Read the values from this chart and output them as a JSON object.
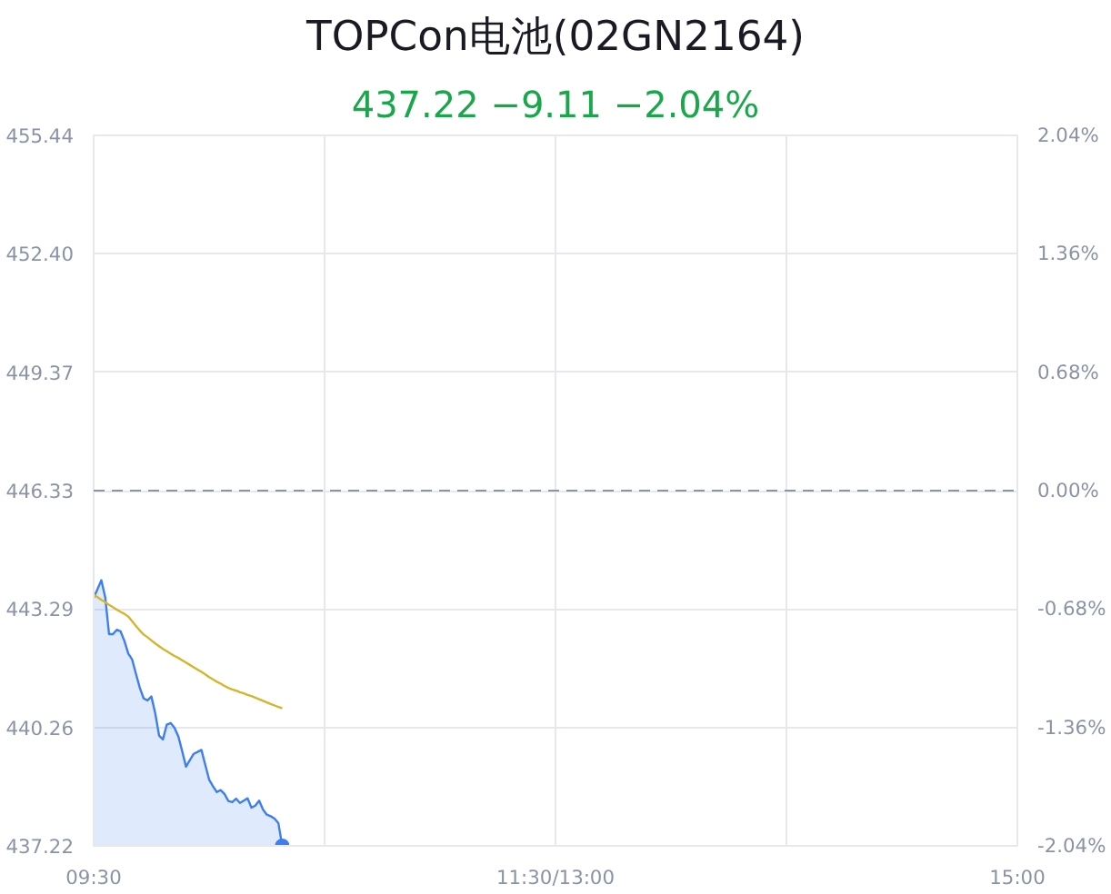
{
  "chart_data": {
    "type": "line",
    "title": "TOPCon电池(02GN2164)",
    "subtitle": "437.22 −9.11 −2.04%",
    "categories": [
      "09:30",
      null,
      null,
      null,
      null,
      null,
      null,
      null,
      null,
      null,
      null,
      null,
      null,
      null,
      null,
      null,
      null,
      null,
      null,
      null,
      null,
      null,
      null,
      null,
      null,
      null,
      null,
      null,
      null,
      null,
      null,
      null,
      null,
      null,
      null,
      null,
      null,
      null,
      null,
      null,
      null,
      null,
      null,
      null,
      null,
      null,
      null,
      null,
      null,
      null,
      null,
      null,
      null,
      null,
      null,
      null,
      null,
      null,
      null,
      null,
      null,
      null,
      null,
      null,
      null,
      null,
      null,
      null,
      null,
      null,
      null,
      null,
      null,
      null,
      null,
      null,
      null,
      null,
      null,
      null,
      null,
      null,
      null,
      null,
      null,
      null,
      null,
      null,
      null,
      null,
      null,
      null,
      null,
      null,
      null,
      null,
      null,
      null,
      null,
      null,
      null,
      null,
      null,
      null,
      null,
      null,
      null,
      null,
      null,
      null,
      null,
      null,
      null,
      null,
      null,
      null,
      null,
      null,
      null,
      null,
      "11:30/13:00",
      null,
      null,
      null,
      null,
      null,
      null,
      null,
      null,
      null,
      null,
      null,
      null,
      null,
      null,
      null,
      null,
      null,
      null,
      null,
      null,
      null,
      null,
      null,
      null,
      null,
      null,
      null,
      null,
      null,
      null,
      null,
      null,
      null,
      null,
      null,
      null,
      null,
      null,
      null,
      null,
      null,
      null,
      null,
      null,
      null,
      null,
      null,
      null,
      null,
      null,
      null,
      null,
      null,
      null,
      null,
      null,
      null,
      null,
      null,
      null,
      null,
      null,
      null,
      null,
      null,
      null,
      null,
      null,
      null,
      null,
      null,
      null,
      null,
      null,
      null,
      null,
      null,
      null,
      null,
      null,
      null,
      null,
      null,
      null,
      null,
      null,
      null,
      null,
      null,
      null,
      null,
      null,
      null,
      null,
      null,
      null,
      null,
      null,
      null,
      null,
      null,
      null,
      null,
      null,
      null,
      null,
      null,
      null,
      null,
      null,
      null,
      null,
      null,
      null,
      null,
      null,
      null,
      null,
      null,
      "15:00"
    ],
    "ylim": [
      437.22,
      455.44
    ],
    "yticks": [
      437.22,
      440.26,
      443.29,
      446.33,
      449.37,
      {
        "value": 452.4,
        "label": "452.40"
      },
      455.44
    ],
    "y2lim": [
      -2.04,
      2.04
    ],
    "y2ticks": [
      {
        "value": -2.04,
        "label": "-2.04%"
      },
      {
        "value": -1.36,
        "label": "-1.36%"
      },
      {
        "value": -0.68,
        "label": "-0.68%"
      },
      {
        "value": 0,
        "label": "0.00%"
      },
      {
        "value": 0.68,
        "label": "0.68%"
      },
      {
        "value": 1.36,
        "label": "1.36%"
      },
      {
        "value": 2.04,
        "label": "2.04%"
      }
    ],
    "ref_lines": [
      {
        "axis": "y",
        "value": 446.33,
        "color": "#8a94a6",
        "line_style": "dashed"
      }
    ],
    "grid": true,
    "series": [
      {
        "type": "area",
        "color": "#3d7ff0",
        "values": [
          443.58,
          443.8,
          444.03,
          443.6,
          442.65,
          442.65,
          442.76,
          442.72,
          442.47,
          442.15,
          442.0,
          441.63,
          441.27,
          441.0,
          440.95,
          441.05,
          440.62,
          440.05,
          439.95,
          440.33,
          440.37,
          440.25,
          440.03,
          439.65,
          439.25,
          439.42,
          439.58,
          439.63,
          439.68,
          439.3,
          438.92,
          438.75,
          438.6,
          438.65,
          438.55,
          438.37,
          438.34,
          438.43,
          438.32,
          438.38,
          438.44,
          438.2,
          438.25,
          438.38,
          438.15,
          438.02,
          437.98,
          437.92,
          437.8,
          437.22,
          null,
          null,
          null,
          null,
          null,
          null,
          null,
          null,
          null,
          null,
          null,
          null,
          null,
          null,
          null,
          null,
          null,
          null,
          null,
          null,
          null,
          null,
          null,
          null,
          null,
          null,
          null,
          null,
          null,
          null,
          null,
          null,
          null,
          null,
          null,
          null,
          null,
          null,
          null,
          null,
          null,
          null,
          null,
          null,
          null,
          null,
          null,
          null,
          null,
          null,
          null,
          null,
          null,
          null,
          null,
          null,
          null,
          null,
          null,
          null,
          null,
          null,
          null,
          null,
          null,
          null,
          null,
          null,
          null,
          null,
          null,
          null,
          null,
          null,
          null,
          null,
          null,
          null,
          null,
          null,
          null,
          null,
          null,
          null,
          null,
          null,
          null,
          null,
          null,
          null,
          null,
          null,
          null,
          null,
          null,
          null,
          null,
          null,
          null,
          null,
          null,
          null,
          null,
          null,
          null,
          null,
          null,
          null,
          null,
          null,
          null,
          null,
          null,
          null,
          null,
          null,
          null,
          null,
          null,
          null,
          null,
          null,
          null,
          null,
          null,
          null,
          null,
          null,
          null,
          null,
          null,
          null,
          null,
          null,
          null,
          null,
          null,
          null,
          null,
          null,
          null,
          null,
          null,
          null,
          null,
          null,
          null,
          null,
          null,
          null,
          null,
          null,
          null,
          null,
          null,
          null,
          null,
          null,
          null,
          null,
          null,
          null,
          null,
          null,
          null,
          null,
          null,
          null,
          null,
          null,
          null,
          null,
          null,
          null,
          null,
          null,
          null,
          null,
          null,
          null,
          null,
          null,
          null,
          null,
          null,
          null,
          null,
          null,
          null,
          null,
          null
        ]
      },
      {
        "color": "#d4b62c",
        "values": [
          443.66,
          443.6,
          443.53,
          443.47,
          443.4,
          443.34,
          443.28,
          443.22,
          443.17,
          443.1,
          442.98,
          442.86,
          442.74,
          442.64,
          442.57,
          442.49,
          442.41,
          442.34,
          442.27,
          442.21,
          442.15,
          442.09,
          442.04,
          441.98,
          441.92,
          441.86,
          441.8,
          441.74,
          441.68,
          441.62,
          441.55,
          441.49,
          441.43,
          441.38,
          441.32,
          441.27,
          441.23,
          441.2,
          441.16,
          441.13,
          441.09,
          441.06,
          441.02,
          440.98,
          440.94,
          440.9,
          440.86,
          440.82,
          440.78,
          440.75,
          null,
          null,
          null,
          null,
          null,
          null,
          null,
          null,
          null,
          null,
          null,
          null,
          null,
          null,
          null,
          null,
          null,
          null,
          null,
          null,
          null,
          null,
          null,
          null,
          null,
          null,
          null,
          null,
          null,
          null,
          null,
          null,
          null,
          null,
          null,
          null,
          null,
          null,
          null,
          null,
          null,
          null,
          null,
          null,
          null,
          null,
          null,
          null,
          null,
          null,
          null,
          null,
          null,
          null,
          null,
          null,
          null,
          null,
          null,
          null,
          null,
          null,
          null,
          null,
          null,
          null,
          null,
          null,
          null,
          null,
          null,
          null,
          null,
          null,
          null,
          null,
          null,
          null,
          null,
          null,
          null,
          null,
          null,
          null,
          null,
          null,
          null,
          null,
          null,
          null,
          null,
          null,
          null,
          null,
          null,
          null,
          null,
          null,
          null,
          null,
          null,
          null,
          null,
          null,
          null,
          null,
          null,
          null,
          null,
          null,
          null,
          null,
          null,
          null,
          null,
          null,
          null,
          null,
          null,
          null,
          null,
          null,
          null,
          null,
          null,
          null,
          null,
          null,
          null,
          null,
          null,
          null,
          null,
          null,
          null,
          null,
          null,
          null,
          null,
          null,
          null,
          null,
          null,
          null,
          null,
          null,
          null,
          null,
          null,
          null,
          null,
          null,
          null,
          null,
          null,
          null,
          null,
          null,
          null,
          null,
          null,
          null,
          null,
          null,
          null,
          null,
          null,
          null,
          null,
          null,
          null,
          null,
          null,
          null,
          null,
          null,
          null,
          null,
          null,
          null,
          null,
          null,
          null,
          null,
          null,
          null,
          null,
          null,
          null,
          null,
          null
        ]
      }
    ]
  }
}
